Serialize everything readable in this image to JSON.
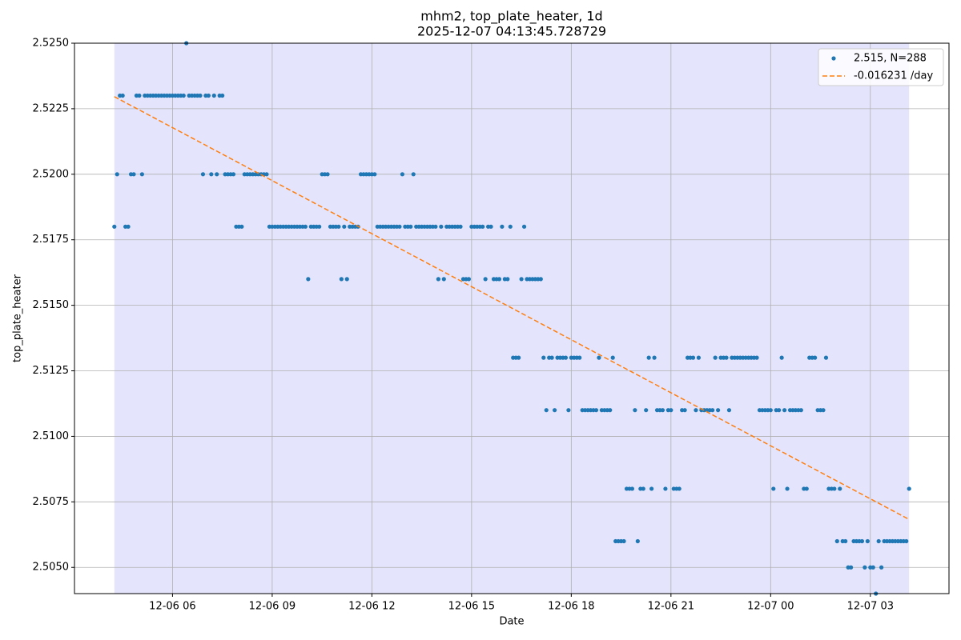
{
  "chart_data": {
    "type": "scatter",
    "title": "mhm2, top_plate_heater, 1d",
    "subtitle": "2025-12-07 04:13:45.728729",
    "x_label": "Date",
    "y_label": "top_plate_heater",
    "xlim": [
      183,
      1762
    ],
    "xticks": [
      {
        "value": 360,
        "label": "12-06 06"
      },
      {
        "value": 540,
        "label": "12-06 09"
      },
      {
        "value": 720,
        "label": "12-06 12"
      },
      {
        "value": 900,
        "label": "12-06 15"
      },
      {
        "value": 1080,
        "label": "12-06 18"
      },
      {
        "value": 1260,
        "label": "12-06 21"
      },
      {
        "value": 1440,
        "label": "12-07 00"
      },
      {
        "value": 1620,
        "label": "12-07 03"
      }
    ],
    "ylim": [
      2.504,
      2.525
    ],
    "yticks": [
      {
        "value": 2.505,
        "label": "2.5050"
      },
      2.5075,
      {
        "value": 2.51,
        "label": "2.5100"
      },
      2.5125,
      {
        "value": 2.515,
        "label": "2.5150"
      },
      2.5175,
      {
        "value": 2.52,
        "label": "2.5200"
      },
      2.5225,
      {
        "value": 2.525,
        "label": "2.5250"
      }
    ],
    "grid": true,
    "legend": "upper right",
    "span": [
      255,
      1690
    ],
    "span_color": "#e4e4fd",
    "series": [
      {
        "name": "2.515, N=288",
        "color": "#1f77b4",
        "x": [
          255,
          260,
          265,
          270,
          275,
          280,
          285,
          290,
          295,
          300,
          305,
          310,
          315,
          320,
          325,
          330,
          335,
          340,
          345,
          350,
          355,
          360,
          365,
          370,
          375,
          380,
          385,
          390,
          395,
          400,
          405,
          410,
          415,
          420,
          425,
          430,
          435,
          440,
          445,
          450,
          455,
          460,
          465,
          470,
          475,
          480,
          485,
          490,
          495,
          500,
          505,
          510,
          515,
          520,
          525,
          530,
          535,
          540,
          545,
          550,
          555,
          560,
          565,
          570,
          575,
          580,
          585,
          590,
          595,
          600,
          605,
          610,
          615,
          620,
          625,
          630,
          635,
          640,
          645,
          650,
          655,
          660,
          665,
          670,
          675,
          680,
          685,
          690,
          695,
          700,
          705,
          710,
          715,
          720,
          725,
          730,
          735,
          740,
          745,
          750,
          755,
          760,
          765,
          770,
          775,
          780,
          785,
          790,
          795,
          800,
          805,
          810,
          815,
          820,
          825,
          830,
          835,
          840,
          845,
          850,
          855,
          860,
          865,
          870,
          875,
          880,
          885,
          890,
          895,
          900,
          905,
          910,
          915,
          920,
          925,
          930,
          935,
          940,
          945,
          950,
          955,
          960,
          965,
          970,
          975,
          980,
          985,
          990,
          995,
          1000,
          1005,
          1010,
          1015,
          1020,
          1025,
          1030,
          1035,
          1040,
          1045,
          1050,
          1055,
          1060,
          1065,
          1070,
          1075,
          1080,
          1085,
          1090,
          1095,
          1100,
          1105,
          1110,
          1115,
          1120,
          1125,
          1130,
          1135,
          1140,
          1145,
          1150,
          1155,
          1160,
          1165,
          1170,
          1175,
          1180,
          1185,
          1190,
          1195,
          1200,
          1205,
          1210,
          1215,
          1220,
          1225,
          1230,
          1235,
          1240,
          1245,
          1250,
          1255,
          1260,
          1265,
          1270,
          1275,
          1280,
          1285,
          1290,
          1295,
          1300,
          1305,
          1310,
          1315,
          1320,
          1325,
          1330,
          1335,
          1340,
          1345,
          1350,
          1355,
          1360,
          1365,
          1370,
          1375,
          1380,
          1385,
          1390,
          1395,
          1400,
          1405,
          1410,
          1415,
          1420,
          1425,
          1430,
          1435,
          1440,
          1445,
          1450,
          1455,
          1460,
          1465,
          1470,
          1475,
          1480,
          1485,
          1490,
          1495,
          1500,
          1505,
          1510,
          1515,
          1520,
          1525,
          1530,
          1535,
          1540,
          1545,
          1550,
          1555,
          1560,
          1565,
          1570,
          1575,
          1580,
          1585,
          1590,
          1595,
          1600,
          1605,
          1610,
          1615,
          1620,
          1625,
          1630,
          1635,
          1640,
          1645,
          1650,
          1655,
          1660,
          1665,
          1670,
          1675,
          1680,
          1685,
          1690
        ],
        "values": [
          2.518,
          2.52,
          2.523,
          2.523,
          2.518,
          2.518,
          2.52,
          2.52,
          2.523,
          2.523,
          2.52,
          2.523,
          2.523,
          2.523,
          2.523,
          2.523,
          2.523,
          2.523,
          2.523,
          2.523,
          2.523,
          2.523,
          2.523,
          2.523,
          2.523,
          2.523,
          2.525,
          2.523,
          2.523,
          2.523,
          2.523,
          2.523,
          2.52,
          2.523,
          2.523,
          2.52,
          2.523,
          2.52,
          2.523,
          2.523,
          2.52,
          2.52,
          2.52,
          2.52,
          2.518,
          2.518,
          2.518,
          2.52,
          2.52,
          2.52,
          2.52,
          2.52,
          2.52,
          2.52,
          2.52,
          2.52,
          2.518,
          2.518,
          2.518,
          2.518,
          2.518,
          2.518,
          2.518,
          2.518,
          2.518,
          2.518,
          2.518,
          2.518,
          2.518,
          2.518,
          2.516,
          2.518,
          2.518,
          2.518,
          2.518,
          2.52,
          2.52,
          2.52,
          2.518,
          2.518,
          2.518,
          2.518,
          2.516,
          2.518,
          2.516,
          2.518,
          2.518,
          2.518,
          2.518,
          2.52,
          2.52,
          2.52,
          2.52,
          2.52,
          2.52,
          2.518,
          2.518,
          2.518,
          2.518,
          2.518,
          2.518,
          2.518,
          2.518,
          2.518,
          2.52,
          2.518,
          2.518,
          2.518,
          2.52,
          2.518,
          2.518,
          2.518,
          2.518,
          2.518,
          2.518,
          2.518,
          2.518,
          2.516,
          2.518,
          2.516,
          2.518,
          2.518,
          2.518,
          2.518,
          2.518,
          2.518,
          2.516,
          2.516,
          2.516,
          2.518,
          2.518,
          2.518,
          2.518,
          2.518,
          2.516,
          2.518,
          2.518,
          2.516,
          2.516,
          2.516,
          2.518,
          2.516,
          2.516,
          2.518,
          2.513,
          2.513,
          2.513,
          2.516,
          2.518,
          2.516,
          2.516,
          2.516,
          2.516,
          2.516,
          2.516,
          2.513,
          2.511,
          2.513,
          2.513,
          2.511,
          2.513,
          2.513,
          2.513,
          2.513,
          2.511,
          2.513,
          2.513,
          2.513,
          2.513,
          2.511,
          2.511,
          2.511,
          2.511,
          2.511,
          2.511,
          2.513,
          2.511,
          2.511,
          2.511,
          2.511,
          2.513,
          2.506,
          2.506,
          2.506,
          2.506,
          2.508,
          2.508,
          2.508,
          2.511,
          2.506,
          2.508,
          2.508,
          2.511,
          2.513,
          2.508,
          2.513,
          2.511,
          2.511,
          2.511,
          2.508,
          2.511,
          2.511,
          2.508,
          2.508,
          2.508,
          2.511,
          2.511,
          2.513,
          2.513,
          2.513,
          2.511,
          2.513,
          2.511,
          2.511,
          2.511,
          2.511,
          2.511,
          2.513,
          2.511,
          2.513,
          2.513,
          2.513,
          2.511,
          2.513,
          2.513,
          2.513,
          2.513,
          2.513,
          2.513,
          2.513,
          2.513,
          2.513,
          2.513,
          2.511,
          2.511,
          2.511,
          2.511,
          2.511,
          2.508,
          2.511,
          2.511,
          2.513,
          2.511,
          2.508,
          2.511,
          2.511,
          2.511,
          2.511,
          2.511,
          2.508,
          2.508,
          2.513,
          2.513,
          2.513,
          2.511,
          2.511,
          2.511,
          2.513,
          2.508,
          2.508,
          2.508,
          2.506,
          2.508,
          2.506,
          2.506,
          2.505,
          2.505,
          2.506,
          2.506,
          2.506,
          2.506,
          2.505,
          2.506,
          2.505,
          2.505,
          2.504,
          2.506,
          2.505,
          2.506,
          2.506,
          2.506,
          2.506,
          2.506,
          2.506,
          2.506,
          2.506,
          2.506,
          2.508
        ]
      },
      {
        "name": "-0.016231 /day",
        "color": "#ff7f0e",
        "line": "dashed",
        "x": [
          255,
          1690
        ],
        "values": [
          2.52296,
          2.50683
        ]
      }
    ]
  }
}
